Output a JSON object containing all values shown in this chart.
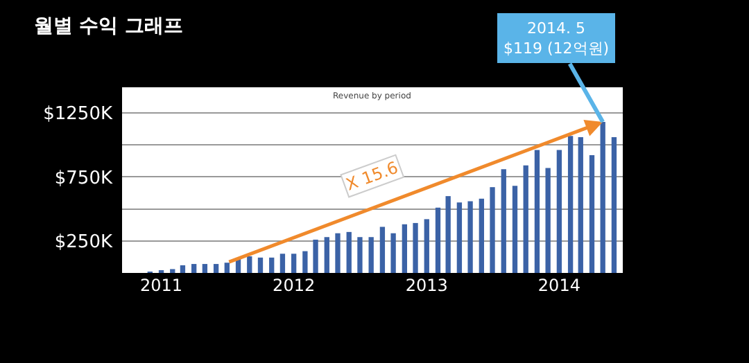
{
  "chart_data": {
    "type": "bar",
    "title": "월별 수익 그래프",
    "subtitle": "Revenue by period",
    "x": [
      "2010-12",
      "2011-01",
      "2011-02",
      "2011-03",
      "2011-04",
      "2011-05",
      "2011-06",
      "2011-07",
      "2011-08",
      "2011-09",
      "2011-10",
      "2011-11",
      "2011-12",
      "2012-01",
      "2012-02",
      "2012-03",
      "2012-04",
      "2012-05",
      "2012-06",
      "2012-07",
      "2012-08",
      "2012-09",
      "2012-10",
      "2012-11",
      "2012-12",
      "2013-01",
      "2013-02",
      "2013-03",
      "2013-04",
      "2013-05",
      "2013-06",
      "2013-07",
      "2013-08",
      "2013-09",
      "2013-10",
      "2013-11",
      "2013-12",
      "2014-01",
      "2014-02",
      "2014-03",
      "2014-04",
      "2014-05",
      "2014-06"
    ],
    "series": [
      {
        "color": "#3b62a6",
        "values": [
          10,
          20,
          30,
          60,
          70,
          70,
          70,
          80,
          110,
          130,
          120,
          120,
          150,
          150,
          170,
          260,
          280,
          310,
          320,
          280,
          280,
          360,
          310,
          380,
          390,
          420,
          510,
          600,
          550,
          560,
          580,
          670,
          810,
          680,
          840,
          960,
          820,
          960,
          1070,
          1060,
          920,
          1180,
          1060
        ]
      }
    ],
    "xlim": [
      "2010-09-15",
      "2014-06-25"
    ],
    "xticks": [
      {
        "value": "2011-01",
        "label": "2011"
      },
      {
        "value": "2012-01",
        "label": "2012"
      },
      {
        "value": "2013-01",
        "label": "2013"
      },
      {
        "value": "2014-01",
        "label": "2014"
      }
    ],
    "ylim": [
      0,
      1450
    ],
    "yticks": [
      {
        "value": 0,
        "label": null
      },
      {
        "value": 250,
        "label": "$250K"
      },
      {
        "value": 500,
        "label": null
      },
      {
        "value": 750,
        "label": "$750K"
      },
      {
        "value": 1000,
        "label": null
      },
      {
        "value": 1250,
        "label": "$1250K"
      }
    ],
    "grid": "y",
    "annotations": [
      "X 15.6",
      {
        "text": "2014. 5\n$119 (12억원)",
        "x": "2014-05",
        "y": 1180
      }
    ]
  }
}
